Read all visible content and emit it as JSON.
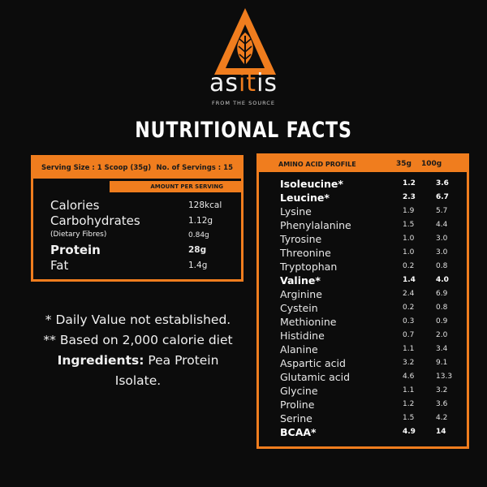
{
  "brand": {
    "name_prefix": "as",
    "name_highlight": "it",
    "name_suffix": "is",
    "tagline": "FROM THE SOURCE",
    "accent_color": "#f07d1e",
    "logo_icon": "leaf-triangle-logo"
  },
  "title": "NUTRITIONAL FACTS",
  "nutrition": {
    "serving_size": "Serving Size : 1 Scoop (35g)",
    "servings": "No. of Servings : 15",
    "amount_header": "AMOUNT PER SERVING",
    "rows": [
      {
        "label": "Calories",
        "value": "128kcal"
      },
      {
        "label": "Carbohydrates",
        "value": "1.12g"
      },
      {
        "label": "(Dietary Fibres)",
        "value": "0.84g"
      },
      {
        "label": "Protein",
        "value": "28g"
      },
      {
        "label": "Fat",
        "value": "1.4g"
      }
    ]
  },
  "notes": {
    "line1": "* Daily Value not established.",
    "line2": "** Based on 2,000 calorie diet",
    "ingredients_label": "Ingredients:",
    "ingredients_value": "Pea Protein Isolate."
  },
  "amino": {
    "header": "AMINO ACID PROFILE",
    "col1": "35g",
    "col2": "100g",
    "rows": [
      {
        "name": "Isoleucine*",
        "a": "1.2",
        "b": "3.6"
      },
      {
        "name": "Leucine*",
        "a": "2.3",
        "b": "6.7"
      },
      {
        "name": "Lysine",
        "a": "1.9",
        "b": "5.7"
      },
      {
        "name": "Phenylalanine",
        "a": "1.5",
        "b": "4.4"
      },
      {
        "name": "Tyrosine",
        "a": "1.0",
        "b": "3.0"
      },
      {
        "name": "Threonine",
        "a": "1.0",
        "b": "3.0"
      },
      {
        "name": "Tryptophan",
        "a": "0.2",
        "b": "0.8"
      },
      {
        "name": "Valine*",
        "a": "1.4",
        "b": "4.0"
      },
      {
        "name": "Arginine",
        "a": "2.4",
        "b": "6.9"
      },
      {
        "name": "Cystein",
        "a": "0.2",
        "b": "0.8"
      },
      {
        "name": "Methionine",
        "a": "0.3",
        "b": "0.9"
      },
      {
        "name": "Histidine",
        "a": "0.7",
        "b": "2.0"
      },
      {
        "name": "Alanine",
        "a": "1.1",
        "b": "3.4"
      },
      {
        "name": "Aspartic acid",
        "a": "3.2",
        "b": "9.1"
      },
      {
        "name": "Glutamic acid",
        "a": "4.6",
        "b": "13.3"
      },
      {
        "name": "Glycine",
        "a": "1.1",
        "b": "3.2"
      },
      {
        "name": "Proline",
        "a": "1.2",
        "b": "3.6"
      },
      {
        "name": "Serine",
        "a": "1.5",
        "b": "4.2"
      },
      {
        "name": "BCAA*",
        "a": "4.9",
        "b": "14"
      }
    ]
  }
}
